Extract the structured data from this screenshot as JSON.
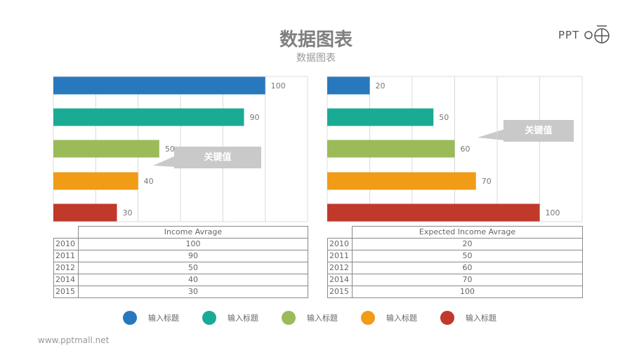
{
  "title": "数据图表",
  "subtitle": "数据图表",
  "logo_text": "PPT 荟",
  "footer": "www.pptmall.net",
  "colors": [
    "#2878bd",
    "#1aab94",
    "#9bbb59",
    "#f09c16",
    "#c0392b"
  ],
  "callout_label": "关键值",
  "chart_data": [
    {
      "type": "bar",
      "orientation": "horizontal",
      "categories": [
        "2010",
        "2011",
        "2012",
        "2014",
        "2015"
      ],
      "values": [
        100,
        90,
        50,
        40,
        30
      ],
      "xlim": [
        0,
        120
      ],
      "grid": true,
      "table_header": "Income Avrage"
    },
    {
      "type": "bar",
      "orientation": "horizontal",
      "categories": [
        "2010",
        "2011",
        "2012",
        "2014",
        "2015"
      ],
      "values": [
        20,
        50,
        60,
        70,
        100
      ],
      "xlim": [
        0,
        120
      ],
      "grid": true,
      "table_header": "Expected Income Avrage"
    }
  ],
  "legend": [
    "输入标题",
    "输入标题",
    "输入标题",
    "输入标题",
    "输入标题"
  ]
}
